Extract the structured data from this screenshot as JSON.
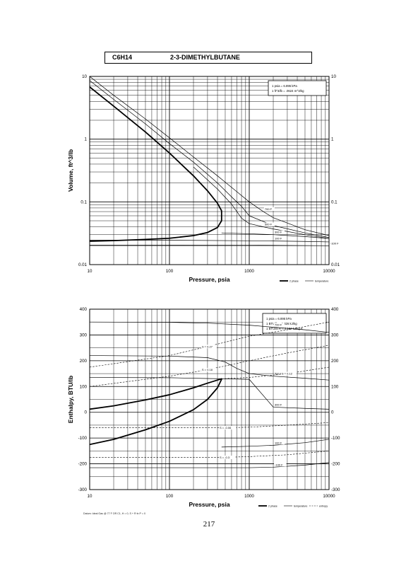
{
  "header": {
    "formula": "C6H14",
    "compound": "2-3-DIMETHYLBUTANE"
  },
  "page_number": "217",
  "footer_note": "Datum: Ideal Gas @ 77 F OR C1, H = 0, S + R·ln P = 0",
  "chart_data": [
    {
      "type": "line",
      "xlabel": "Pressure,  psia",
      "ylabel": "Volume, ft^3/lb",
      "xscale": "log",
      "yscale": "log",
      "xlim": [
        10,
        10000
      ],
      "ylim": [
        0.01,
        10
      ],
      "grid": true,
      "x_ticks": [
        "10",
        "100",
        "1000",
        "10000"
      ],
      "y_ticks": [
        "0.01",
        "0.1",
        "1",
        "10"
      ],
      "conversion_box": [
        "1 psia  =  6.895 kPa",
        "1 ft^3/lb  =  .0624 m^3/kg"
      ],
      "legend": [
        "2 phase",
        "temperature"
      ],
      "legend_placement": "bottom-right",
      "two_phase": {
        "vapor": {
          "x": [
            10,
            20,
            50,
            100,
            200,
            300,
            400,
            450
          ],
          "y": [
            6.8,
            3.35,
            1.3,
            0.6,
            0.26,
            0.15,
            0.095,
            0.072
          ]
        },
        "liquid": {
          "x": [
            10,
            20,
            50,
            100,
            200,
            300,
            400,
            450
          ],
          "y": [
            0.0236,
            0.0241,
            0.0252,
            0.0263,
            0.029,
            0.0325,
            0.039,
            0.05
          ]
        }
      },
      "isotherms": [
        {
          "label": "700 F",
          "x": [
            10,
            20,
            50,
            100,
            200,
            400,
            700,
            1000,
            1500,
            2000,
            5000,
            10000
          ],
          "y": [
            10,
            5,
            2.1,
            1.05,
            0.52,
            0.26,
            0.145,
            0.1,
            0.07,
            0.056,
            0.036,
            0.029
          ]
        },
        {
          "label": "",
          "x": [
            10,
            20,
            50,
            100,
            200,
            400,
            600,
            800,
            1000,
            2000,
            5000,
            10000
          ],
          "y": [
            8.6,
            4.3,
            1.75,
            0.85,
            0.43,
            0.2,
            0.12,
            0.085,
            0.06,
            0.042,
            0.032,
            0.027
          ]
        },
        {
          "label": "500 F",
          "x": [
            200,
            400,
            600,
            700,
            800,
            1000,
            1500,
            2000,
            5000,
            10000
          ],
          "y": [
            0.36,
            0.16,
            0.092,
            0.07,
            0.055,
            0.045,
            0.04,
            0.037,
            0.03,
            0.026
          ]
        },
        {
          "label": "300 F",
          "x": [
            450,
            1000,
            2000,
            5000,
            10000
          ],
          "y": [
            0.032,
            0.031,
            0.03,
            0.028,
            0.026
          ]
        },
        {
          "label": "100 F",
          "x": [
            10,
            100,
            1000,
            2000,
            5000,
            10000
          ],
          "y": [
            0.0245,
            0.0245,
            0.024,
            0.0238,
            0.0234,
            0.023
          ]
        },
        {
          "label": "-100 F",
          "x": [
            10,
            100,
            1000,
            10000
          ],
          "y": [
            0.0205,
            0.0205,
            0.0204,
            0.02
          ]
        }
      ]
    },
    {
      "type": "line",
      "xlabel": "Pressure,  psia",
      "ylabel": "Enthalpy, BTU/lb",
      "xscale": "log",
      "yscale": "linear",
      "xlim": [
        10,
        10000
      ],
      "ylim": [
        -300,
        400
      ],
      "grid": true,
      "x_ticks": [
        "10",
        "100",
        "1000",
        "10000"
      ],
      "y_ticks": [
        "-300",
        "-200",
        "-100",
        "0",
        "100",
        "200",
        "300",
        "400"
      ],
      "conversion_box": [
        "1 psia  =  6.895 kPa",
        "1 BTU/lb  =  2.326 kJ/kg",
        "1 BTU/lb R  =  4.187 kJ/kg K"
      ],
      "legend": [
        "2 phase",
        "temperature",
        "entropy"
      ],
      "legend_placement": "bottom-right",
      "two_phase": {
        "vapor": {
          "x": [
            10,
            20,
            50,
            100,
            200,
            300,
            400,
            450
          ],
          "y": [
            12,
            25,
            48,
            68,
            95,
            113,
            125,
            130
          ]
        },
        "liquid": {
          "x": [
            10,
            20,
            50,
            100,
            200,
            300,
            400,
            450
          ],
          "y": [
            -125,
            -105,
            -68,
            -35,
            10,
            50,
            95,
            128
          ]
        }
      },
      "isotherms": [
        {
          "label": "700 F",
          "x": [
            10,
            100,
            300,
            1000,
            2000,
            5000,
            10000
          ],
          "y": [
            350,
            349,
            346,
            338,
            330,
            320,
            310
          ]
        },
        {
          "label": "500 F",
          "x": [
            10,
            100,
            300,
            500,
            700,
            1000,
            2000,
            5000,
            10000
          ],
          "y": [
            220,
            218,
            212,
            195,
            170,
            150,
            140,
            132,
            125
          ]
        },
        {
          "label": "300 F",
          "x": [
            10,
            100,
            300,
            1000,
            2000,
            5000,
            10000
          ],
          "y": [
            135,
            134,
            131,
            128,
            20,
            15,
            12
          ]
        },
        {
          "label": "100 F",
          "x": [
            450,
            1000,
            2000,
            5000,
            10000
          ],
          "y": [
            -135,
            -132,
            -128,
            -118,
            -105
          ]
        },
        {
          "label": "-100 F",
          "x": [
            10,
            100,
            1000,
            2000,
            5000,
            10000
          ],
          "y": [
            -215,
            -215,
            -215,
            -213,
            -205,
            -195
          ]
        }
      ],
      "isentropes": [
        {
          "label": "S = 0.27",
          "x": [
            10,
            100,
            300,
            1000,
            3000,
            10000
          ],
          "y": [
            175,
            220,
            255,
            295,
            320,
            350
          ]
        },
        {
          "label": "S = 0.18",
          "x": [
            10,
            100,
            300,
            1000,
            3000,
            10000
          ],
          "y": [
            100,
            140,
            165,
            200,
            230,
            260
          ]
        },
        {
          "label": "S = 0.12",
          "x": [
            450,
            1000,
            3000,
            10000
          ],
          "y": [
            130,
            135,
            150,
            175
          ]
        },
        {
          "label": "S = -0.06",
          "x": [
            10,
            100,
            500,
            1000,
            3000,
            10000
          ],
          "y": [
            -60,
            -60,
            -60,
            -58,
            -50,
            -40
          ]
        },
        {
          "label": "S = -0.3",
          "x": [
            10,
            100,
            500,
            1000,
            3000,
            10000
          ],
          "y": [
            -175,
            -175,
            -175,
            -172,
            -165,
            -150
          ]
        }
      ]
    }
  ]
}
